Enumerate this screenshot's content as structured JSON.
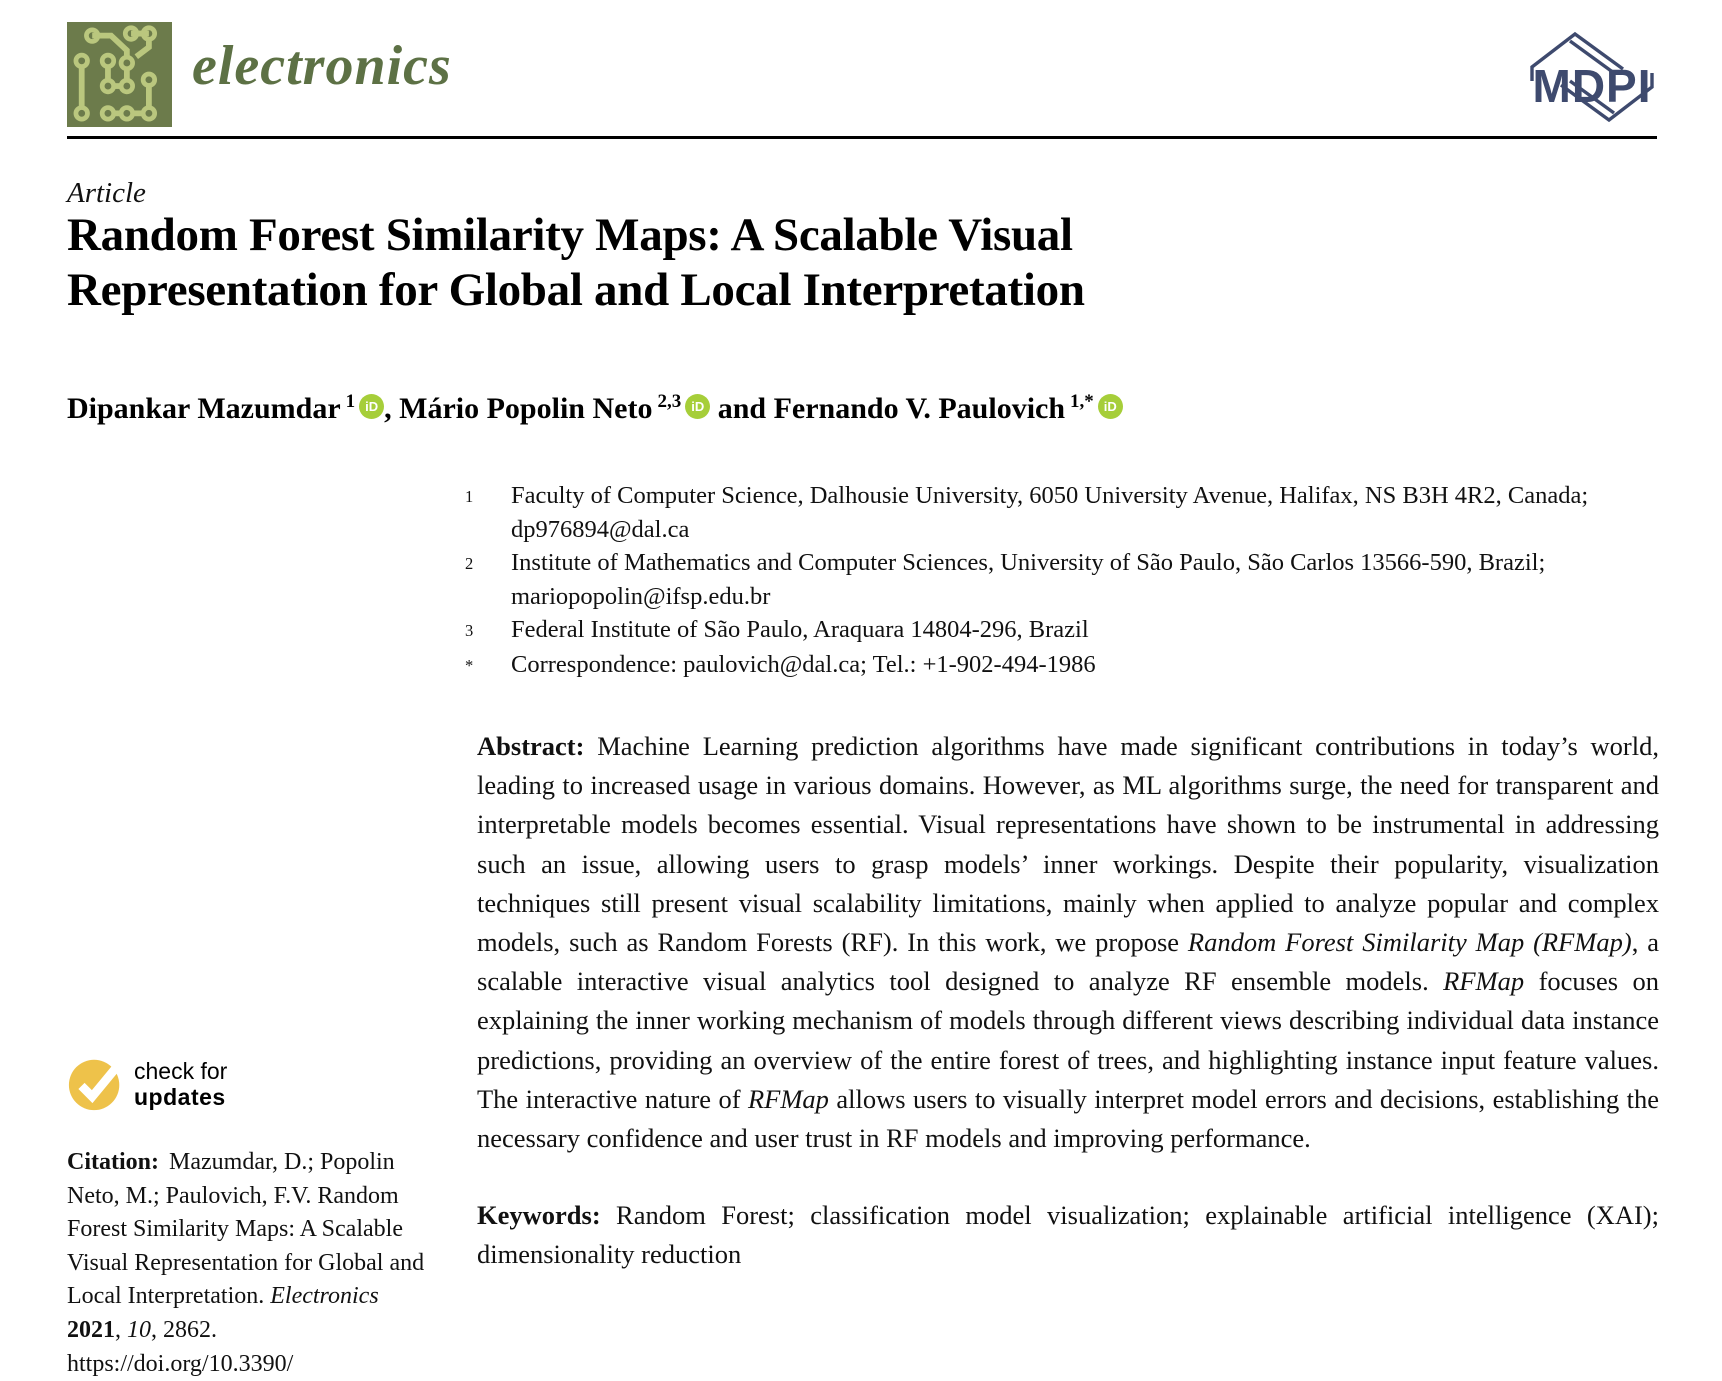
{
  "colors": {
    "logo-bg": "#6c7b4b",
    "logo-trace": "#bac77e",
    "journal-green": "#5d7145",
    "mdpi-blue": "#3e4a6e",
    "orcid-green": "#a6ce39",
    "badge-yellow": "#eec24a",
    "text": "#111111"
  },
  "header": {
    "journal_name": "electronics",
    "publisher_name": "MDPI"
  },
  "article": {
    "type_label": "Article",
    "title": "Random Forest Similarity Maps: A Scalable Visual Representation for Global and Local Interpretation",
    "orcid_label": "iD",
    "authors": [
      {
        "name": "Dipankar Mazumdar",
        "sup": "1",
        "orcid": true,
        "sep_before": ""
      },
      {
        "name": "Mário Popolin Neto",
        "sup": "2,3",
        "orcid": true,
        "sep_before": ", "
      },
      {
        "name": "Fernando V. Paulovich",
        "sup": "1,*",
        "orcid": true,
        "sep_before": " and "
      }
    ],
    "affiliations": [
      {
        "marker": "1",
        "text": "Faculty of Computer Science, Dalhousie University, 6050 University Avenue, Halifax, NS B3H 4R2, Canada; dp976894@dal.ca"
      },
      {
        "marker": "2",
        "text": "Institute of Mathematics and Computer Sciences, University of São Paulo, São Carlos 13566-590, Brazil; mariopopolin@ifsp.edu.br"
      },
      {
        "marker": "3",
        "text": "Federal Institute of São Paulo, Araquara 14804-296, Brazil"
      },
      {
        "marker": "*",
        "text": "Correspondence: paulovich@dal.ca; Tel.: +1-902-494-1986"
      }
    ],
    "abstract": {
      "label": "Abstract:",
      "segments": [
        {
          "italic": false,
          "text": " Machine Learning prediction algorithms have made significant contributions in today’s world, leading to increased usage in various domains. However, as ML algorithms surge, the need for transparent and interpretable models becomes essential. Visual representations have shown to be instrumental in addressing such an issue, allowing users to grasp models’ inner workings. Despite their popularity, visualization techniques still present visual scalability limitations, mainly when applied to analyze popular and complex models, such as Random Forests (RF). In this work, we propose "
        },
        {
          "italic": true,
          "text": "Random Forest Similarity Map (RFMap)"
        },
        {
          "italic": false,
          "text": ", a scalable interactive visual analytics tool designed to analyze RF ensemble models. "
        },
        {
          "italic": true,
          "text": "RFMap"
        },
        {
          "italic": false,
          "text": " focuses on explaining the inner working mechanism of models through different views describing individual data instance predictions, providing an overview of the entire forest of trees, and highlighting instance input feature values. The interactive nature of "
        },
        {
          "italic": true,
          "text": "RFMap"
        },
        {
          "italic": false,
          "text": " allows users to visually interpret model errors and decisions, establishing the necessary confidence and user trust in RF models and improving performance."
        }
      ]
    },
    "keywords": {
      "label": "Keywords:",
      "text": " Random Forest; classification model visualization; explainable artificial intelligence (XAI); dimensionality reduction"
    }
  },
  "sidebar": {
    "badge": {
      "line1": "check for",
      "line2": "updates"
    },
    "citation": {
      "label": "Citation:",
      "segments": [
        {
          "style": "normal",
          "text": "Mazumdar, D.; Popolin Neto, M.; Paulovich, F.V. Random Forest Similarity Maps: A Scalable Visual Representation for Global and Local Interpretation. "
        },
        {
          "style": "italic",
          "text": "Electronics "
        },
        {
          "style": "bold",
          "text": "2021"
        },
        {
          "style": "normal",
          "text": ", "
        },
        {
          "style": "italic",
          "text": "10"
        },
        {
          "style": "normal",
          "text": ", 2862.  https://doi.org/10.3390/"
        }
      ]
    }
  }
}
